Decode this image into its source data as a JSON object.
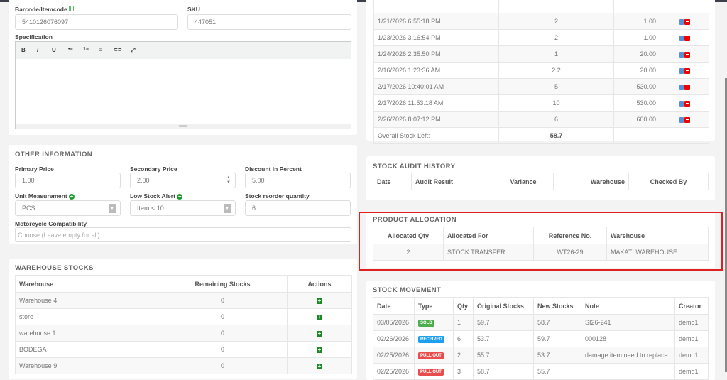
{
  "product": {
    "barcode_label": "Barcode/Itemcode",
    "barcode_value": "5410126076097",
    "sku_label": "SKU",
    "sku_value": "447051",
    "spec_label": "Specification",
    "toolbar": [
      "B",
      "I",
      "U",
      "•≡",
      "1≡",
      "≡",
      "⊂⊃",
      "⤢"
    ]
  },
  "other_info": {
    "title": "OTHER INFORMATION",
    "primary_price_label": "Primary Price",
    "primary_price": "1.00",
    "secondary_price_label": "Secondary Price",
    "secondary_price": "2.00",
    "discount_label": "Discount In Percent",
    "discount": "5.00",
    "unit_label": "Unit Measurement",
    "unit": "PCS",
    "low_stock_label": "Low Stock Alert",
    "low_stock": "Item < 10",
    "reorder_label": "Stock reorder quantity",
    "reorder": "6",
    "moto_label": "Motorcycle Compatibility",
    "moto_placeholder": "Choose (Leave empty for all)"
  },
  "warehouse_stocks": {
    "title": "WAREHOUSE STOCKS",
    "headers": [
      "Warehouse",
      "Remaining Stocks",
      "Actions"
    ],
    "rows": [
      [
        "Warehouse 4",
        "0"
      ],
      [
        "store",
        "0"
      ],
      [
        "warehouse 1",
        "0"
      ],
      [
        "BODEGA",
        "0"
      ],
      [
        "Warehouse 9",
        "0"
      ]
    ]
  },
  "stock_batches": {
    "rows": [
      [
        "1/21/2026 6:55:18 PM",
        "2",
        "1.00"
      ],
      [
        "1/23/2026 3:16:54 PM",
        "2",
        "1.00"
      ],
      [
        "1/24/2026 2:35:50 PM",
        "1",
        "20.00"
      ],
      [
        "2/16/2026 1:23:36 AM",
        "2.2",
        "20.00"
      ],
      [
        "2/17/2026 10:40:01 AM",
        "5",
        "530.00"
      ],
      [
        "2/17/2026 11:53:18 AM",
        "10",
        "530.00"
      ],
      [
        "2/26/2026 8:07:12 PM",
        "6",
        "600.00"
      ]
    ],
    "total_label": "Overall Stock Left:",
    "total": "58.7"
  },
  "audit": {
    "title": "STOCK AUDIT HISTORY",
    "headers": [
      "Date",
      "Audit Result",
      "Variance",
      "Warehouse",
      "Checked By"
    ]
  },
  "allocation": {
    "title": "PRODUCT ALLOCATION",
    "headers": [
      "Allocated Qty",
      "Allocated For",
      "Reference No.",
      "Warehouse"
    ],
    "rows": [
      [
        "2",
        "STOCK TRANSFER",
        "WT26-29",
        "MAKATI WAREHOUSE"
      ]
    ],
    "highlight_color": "#e02020"
  },
  "movement": {
    "title": "STOCK MOVEMENT",
    "headers": [
      "Date",
      "Type",
      "Qty",
      "Original Stocks",
      "New Stocks",
      "Note",
      "Creator"
    ],
    "rows": [
      {
        "date": "03/05/2026",
        "type": "SOLD",
        "color": "#4cae4c",
        "qty": "1",
        "orig": "59.7",
        "new": "58.7",
        "note": "SI26-241",
        "creator": "demo1"
      },
      {
        "date": "02/26/2026",
        "type": "RECEIVED",
        "color": "#1e9ff2",
        "qty": "6",
        "orig": "53.7",
        "new": "59.7",
        "note": "000128",
        "creator": "demo1"
      },
      {
        "date": "02/25/2026",
        "type": "PULL OUT",
        "color": "#e84c4c",
        "qty": "2",
        "orig": "55.7",
        "new": "53.7",
        "note": "damage item need to replace",
        "creator": "demo1"
      },
      {
        "date": "02/25/2026",
        "type": "PULL OUT",
        "color": "#e84c4c",
        "qty": "3",
        "orig": "58.7",
        "new": "55.7",
        "note": "",
        "creator": "demo1"
      }
    ]
  }
}
